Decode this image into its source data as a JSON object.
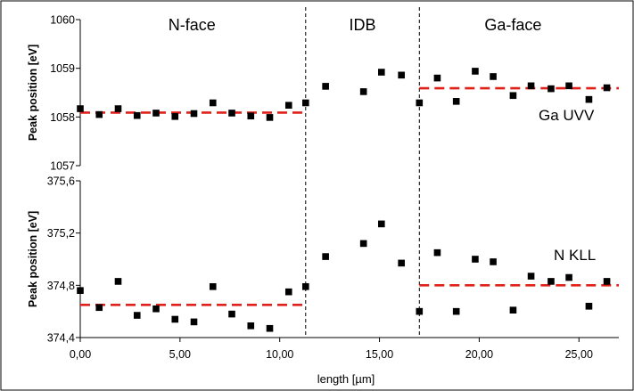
{
  "chart_data": [
    {
      "type": "scatter",
      "panel": "top",
      "ylabel": "Peak position [eV]",
      "xlabel": "",
      "xlim": [
        0,
        27
      ],
      "ylim": [
        1057,
        1060
      ],
      "yticks": [
        "1057",
        "1058",
        "1059",
        "1060"
      ],
      "series_label": "Ga UVV",
      "series": [
        {
          "x": [
            0.0,
            0.95,
            1.9,
            2.85,
            3.8,
            4.75,
            5.7,
            6.65,
            7.6,
            8.55,
            9.5,
            10.45,
            11.3,
            12.3,
            14.2,
            15.1,
            16.1,
            17.0,
            17.9,
            18.85,
            19.8,
            20.7,
            21.7,
            22.6,
            23.6,
            24.5,
            25.5,
            26.4
          ],
          "y": [
            1058.17,
            1058.05,
            1058.17,
            1058.03,
            1058.08,
            1058.01,
            1058.07,
            1058.29,
            1058.08,
            1058.02,
            1057.99,
            1058.24,
            1058.29,
            1058.63,
            1058.52,
            1058.92,
            1058.86,
            1058.29,
            1058.8,
            1058.32,
            1058.94,
            1058.83,
            1058.44,
            1058.64,
            1058.58,
            1058.64,
            1058.36,
            1058.6
          ]
        }
      ],
      "reference_lines": [
        {
          "x_range": [
            0,
            11.3
          ],
          "y": 1058.09,
          "color": "#e0201b"
        },
        {
          "x_range": [
            17.0,
            27.0
          ],
          "y": 1058.59,
          "color": "#e0201b"
        }
      ]
    },
    {
      "type": "scatter",
      "panel": "bottom",
      "ylabel": "Peak position [eV]",
      "xlabel": "length [µm]",
      "xlim": [
        0,
        27
      ],
      "ylim": [
        374.4,
        375.6
      ],
      "yticks": [
        "374,4",
        "374,8",
        "375,2",
        "375,6"
      ],
      "xticks": [
        "0,00",
        "5,00",
        "10,00",
        "15,00",
        "20,00",
        "25,00"
      ],
      "series_label": "N KLL",
      "series": [
        {
          "x": [
            0.0,
            0.95,
            1.9,
            2.85,
            3.8,
            4.75,
            5.7,
            6.65,
            7.6,
            8.55,
            9.5,
            10.45,
            11.3,
            12.3,
            14.2,
            15.1,
            16.1,
            17.0,
            17.9,
            18.85,
            19.8,
            20.7,
            21.7,
            22.6,
            23.6,
            24.5,
            25.5,
            26.4
          ],
          "y": [
            374.76,
            374.63,
            374.83,
            374.57,
            374.62,
            374.54,
            374.52,
            374.79,
            374.58,
            374.49,
            374.47,
            374.75,
            374.79,
            375.02,
            375.12,
            375.27,
            374.97,
            374.6,
            375.05,
            374.6,
            375.0,
            374.98,
            374.61,
            374.87,
            374.83,
            374.86,
            374.64,
            374.83
          ]
        }
      ],
      "reference_lines": [
        {
          "x_range": [
            0,
            11.3
          ],
          "y": 374.65,
          "color": "#e0201b"
        },
        {
          "x_range": [
            17.0,
            27.0
          ],
          "y": 374.8,
          "color": "#e0201b"
        }
      ]
    }
  ],
  "regions": [
    {
      "label": "N-face",
      "x_center": 5.6
    },
    {
      "label": "IDB",
      "x_center": 14.15
    },
    {
      "label": "Ga-face",
      "x_center": 21.7
    }
  ],
  "boundaries_x": [
    11.3,
    17.0
  ],
  "colors": {
    "reference_line": "#e0201b",
    "marker": "#000000",
    "boundary": "#000000"
  }
}
